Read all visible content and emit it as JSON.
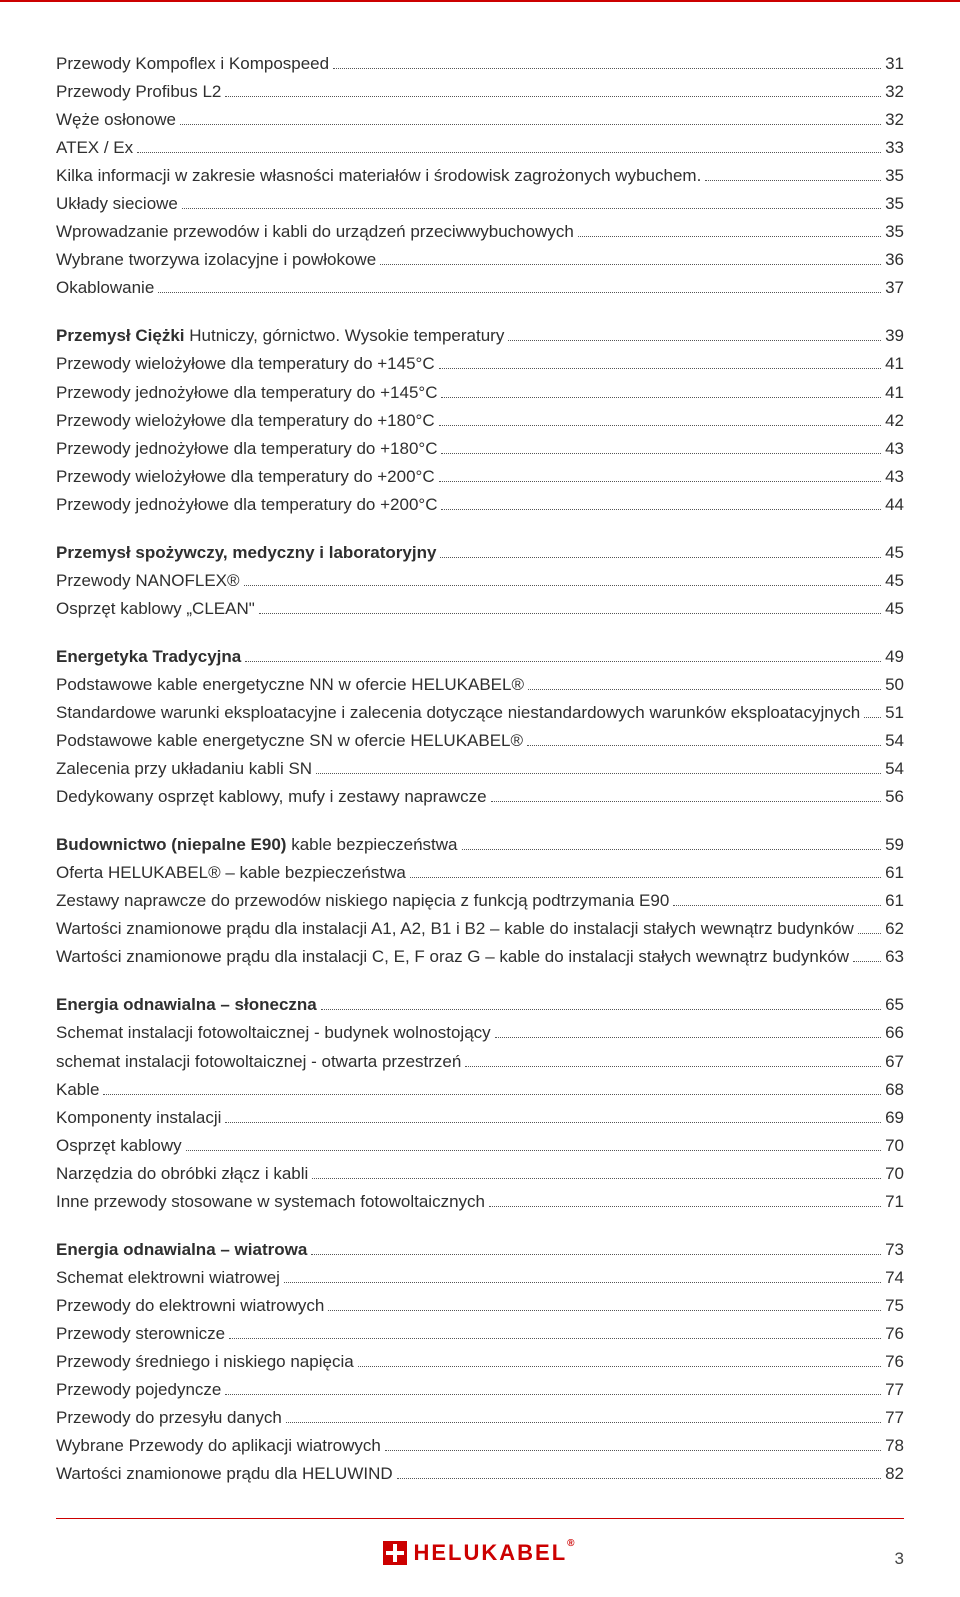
{
  "colors": {
    "accent": "#cc0000",
    "text": "#2f2f2f",
    "leader": "#555555"
  },
  "page_number": "3",
  "logo_text": "HELUKABEL",
  "toc": [
    {
      "label": "Przewody Kompoflex i Kompospeed",
      "page": "31"
    },
    {
      "label": "Przewody Profibus L2",
      "page": "32"
    },
    {
      "label": "Węże osłonowe",
      "page": "32"
    },
    {
      "label": "ATEX / Ex",
      "page": "33"
    },
    {
      "label": "Kilka informacji w zakresie własności materiałów i środowisk zagrożonych wybuchem.",
      "page": "35"
    },
    {
      "label": "Układy sieciowe",
      "page": "35"
    },
    {
      "label": "Wprowadzanie przewodów i kabli do urządzeń przeciwwybuchowych",
      "page": "35"
    },
    {
      "label": "Wybrane tworzywa izolacyjne i powłokowe",
      "page": "36"
    },
    {
      "label": "Okablowanie",
      "page": "37"
    },
    {
      "bold_prefix": "Przemysł Ciężki",
      "label_rest": " Hutniczy, górnictwo. Wysokie temperatury",
      "page": "39",
      "head": true
    },
    {
      "label": "Przewody wielożyłowe dla temperatury do +145°C",
      "page": "41"
    },
    {
      "label": "Przewody jednożyłowe dla temperatury do +145°C",
      "page": "41"
    },
    {
      "label": "Przewody wielożyłowe dla temperatury do +180°C",
      "page": "42"
    },
    {
      "label": "Przewody jednożyłowe dla temperatury do +180°C",
      "page": "43"
    },
    {
      "label": "Przewody wielożyłowe dla temperatury do +200°C",
      "page": "43"
    },
    {
      "label": "Przewody jednożyłowe dla temperatury do +200°C",
      "page": "44"
    },
    {
      "bold_prefix": "Przemysł spożywczy, medyczny i laboratoryjny",
      "label_rest": "",
      "page": "45",
      "head": true
    },
    {
      "label": "Przewody NANOFLEX®",
      "page": "45"
    },
    {
      "label": "Osprzęt kablowy „CLEAN\"",
      "page": "45"
    },
    {
      "bold_prefix": "Energetyka Tradycyjna",
      "label_rest": "",
      "page": "49",
      "head": true
    },
    {
      "label": "Podstawowe kable energetyczne NN w ofercie HELUKABEL®",
      "page": "50"
    },
    {
      "label": "Standardowe warunki eksploatacyjne i zalecenia dotyczące niestandardowych warunków eksploatacyjnych",
      "page": "51"
    },
    {
      "label": "Podstawowe kable energetyczne SN w ofercie HELUKABEL®",
      "page": "54"
    },
    {
      "label": "Zalecenia przy układaniu kabli SN",
      "page": "54"
    },
    {
      "label": "Dedykowany osprzęt kablowy, mufy i zestawy naprawcze",
      "page": "56"
    },
    {
      "bold_prefix": "Budownictwo (niepalne E90)",
      "label_rest": " kable bezpieczeństwa",
      "page": "59",
      "head": true
    },
    {
      "label": "Oferta HELUKABEL® – kable bezpieczeństwa",
      "page": "61"
    },
    {
      "label": "Zestawy naprawcze do przewodów niskiego napięcia z funkcją podtrzymania E90",
      "page": "61"
    },
    {
      "label": "Wartości znamionowe prądu dla instalacji A1, A2, B1 i B2 – kable do instalacji stałych wewnątrz budynków",
      "page": "62"
    },
    {
      "label": "Wartości znamionowe prądu dla instalacji C, E, F oraz G – kable do instalacji stałych wewnątrz budynków",
      "page": "63"
    },
    {
      "bold_prefix": "Energia odnawialna – słoneczna",
      "label_rest": "",
      "page": "65",
      "head": true
    },
    {
      "label": "Schemat instalacji fotowoltaicznej - budynek wolnostojący",
      "page": "66"
    },
    {
      "label": "schemat instalacji fotowoltaicznej - otwarta przestrzeń",
      "page": "67"
    },
    {
      "label": "Kable",
      "page": "68"
    },
    {
      "label": "Komponenty instalacji",
      "page": "69"
    },
    {
      "label": "Osprzęt kablowy",
      "page": "70"
    },
    {
      "label": "Narzędzia do obróbki złącz i kabli",
      "page": "70"
    },
    {
      "label": "Inne przewody stosowane w systemach fotowoltaicznych",
      "page": "71"
    },
    {
      "bold_prefix": "Energia odnawialna – wiatrowa",
      "label_rest": "",
      "page": "73",
      "head": true
    },
    {
      "label": "Schemat elektrowni wiatrowej",
      "page": "74"
    },
    {
      "label": "Przewody do elektrowni wiatrowych",
      "page": "75"
    },
    {
      "label": "Przewody sterownicze",
      "page": "76"
    },
    {
      "label": "Przewody średniego i niskiego napięcia",
      "page": "76"
    },
    {
      "label": "Przewody pojedyncze",
      "page": "77"
    },
    {
      "label": "Przewody do przesyłu danych",
      "page": "77"
    },
    {
      "label": "Wybrane Przewody do aplikacji wiatrowych",
      "page": "78"
    },
    {
      "label": "Wartości znamionowe prądu dla HELUWIND",
      "page": "82"
    }
  ]
}
